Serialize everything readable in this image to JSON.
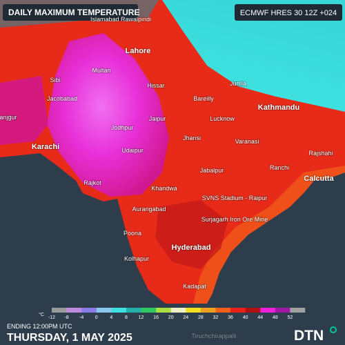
{
  "header": {
    "title": "DAILY MAXIMUM TEMPERATURE",
    "model": "ECMWF HRES 30 12Z +024"
  },
  "cities": [
    "Islamabad Rawalpindi",
    "Lahore",
    "Multan",
    "Sibi",
    "Hissar",
    "Jumla",
    "Bareilly",
    "Jacobabad",
    "Lucknow",
    "Kathmandu",
    "anjgur",
    "Jaipur",
    "Jodhpur",
    "Jhansi",
    "Varanasi",
    "Karachi",
    "Udaipur",
    "Rajshahi",
    "Ranchi",
    "Jabalpur",
    "Calcutta",
    "Rajkot",
    "Khandwa",
    "SVNS Stadium - Raipur",
    "Aurangabad",
    "Surjagarh Iron Ore Mine",
    "Poona",
    "Hyderabad",
    "Kolhapur",
    "Kadapat",
    "Tiruchchirappalli"
  ],
  "legend": {
    "unit": "°C",
    "ticks": [
      -12,
      -8,
      -4,
      0,
      4,
      8,
      12,
      16,
      20,
      24,
      28,
      32,
      36,
      40,
      44,
      48,
      52
    ],
    "colors": [
      "#9a9a9a",
      "#c08ae0",
      "#8a7ae8",
      "#8ac8f0",
      "#3ee0e0",
      "#22b0a8",
      "#30c860",
      "#a8e040",
      "#f0f0c8",
      "#f0e020",
      "#f0a020",
      "#f06018",
      "#e82018",
      "#b01010",
      "#f020d8",
      "#a018a8",
      "#a0a0a0"
    ]
  },
  "footer": {
    "ending": "ENDING 12:00PM UTC",
    "date": "THURSDAY, 1 MAY 2025",
    "logo": "DTN"
  }
}
